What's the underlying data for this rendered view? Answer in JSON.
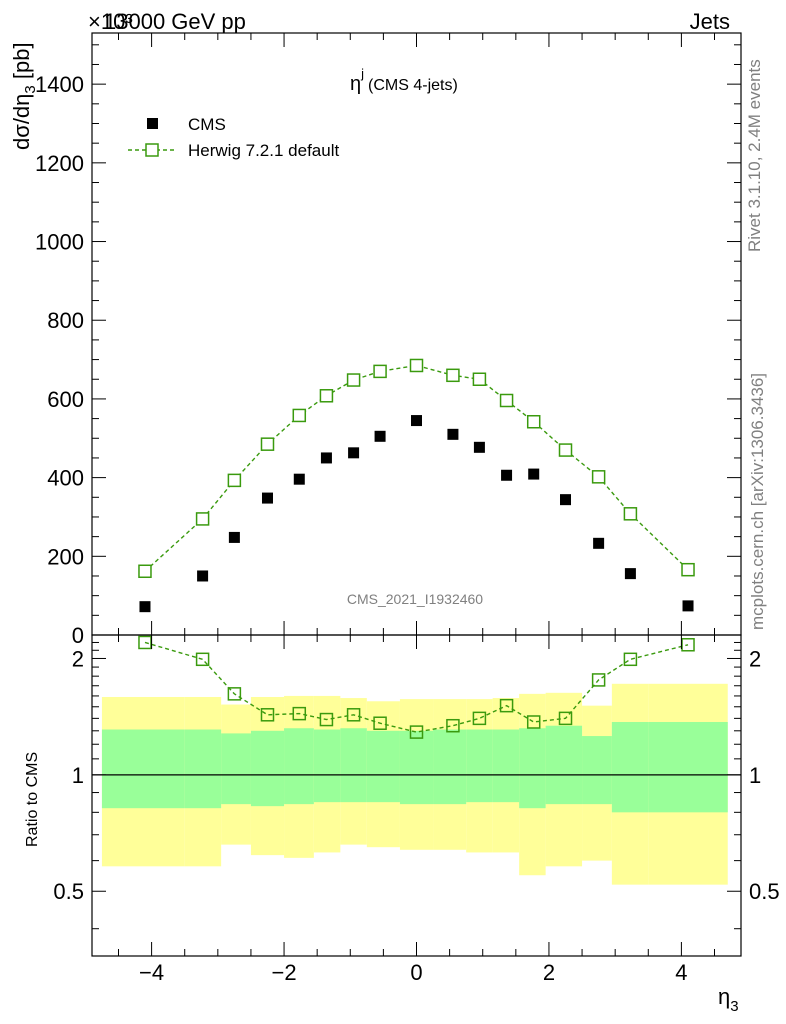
{
  "header": {
    "left": "13000 GeV pp",
    "right": "Jets",
    "exponent": "×10³"
  },
  "side_labels": {
    "rivet": "Rivet 3.1.10,  2.4M events",
    "mcplots": "mcplots.cern.ch [arXiv:1306.3436]"
  },
  "watermark": "CMS_2021_I1932460",
  "chart_data": [
    {
      "type": "scatter",
      "title": "η^j (CMS 4-jets)",
      "title_main": "η",
      "title_sup": "j",
      "title_rest": "(CMS 4-jets)",
      "ylabel": "dσ/dη₃ [pb]",
      "ylabel_main": "dσ/dη",
      "ylabel_sub": "3",
      "ylabel_unit": " [pb]",
      "xlim": [
        -4.9,
        4.9
      ],
      "ylim": [
        0,
        1530
      ],
      "y_ticks": [
        0,
        200,
        400,
        600,
        800,
        1000,
        1200,
        1400
      ],
      "y_tick_labels": [
        "0",
        "200",
        "400",
        "600",
        "800",
        "1000",
        "1200",
        "1400"
      ],
      "x": [
        -4.1,
        -3.23,
        -2.75,
        -2.25,
        -1.77,
        -1.36,
        -0.95,
        -0.55,
        0.0,
        0.55,
        0.95,
        1.36,
        1.77,
        2.25,
        2.75,
        3.23,
        4.1
      ],
      "series": [
        {
          "name": "CMS",
          "marker": "filled-square",
          "color": "#000000",
          "values": [
            72,
            150,
            248,
            348,
            396,
            450,
            463,
            505,
            545,
            510,
            477,
            406,
            409,
            344,
            233,
            156,
            74
          ]
        },
        {
          "name": "Herwig 7.2.1 default",
          "marker": "open-square-dashed",
          "color": "#3a9a0e",
          "values": [
            162,
            295,
            393,
            485,
            558,
            608,
            648,
            670,
            685,
            660,
            650,
            596,
            542,
            470,
            402,
            308,
            166
          ]
        }
      ]
    },
    {
      "type": "line",
      "ylabel": "Ratio to CMS",
      "xlabel": "η₃",
      "xlabel_main": "η",
      "xlabel_sub": "3",
      "xlim": [
        -4.9,
        4.9
      ],
      "ylim": [
        0.34,
        2.3
      ],
      "y_ticks": [
        0.5,
        1,
        2
      ],
      "y_tick_labels": [
        "0.5",
        "1",
        "2"
      ],
      "x_ticks": [
        -4,
        -2,
        0,
        2,
        4
      ],
      "x_tick_labels": [
        "−4",
        "−2",
        "0",
        "2",
        "4"
      ],
      "bins": [
        -4.75,
        -3.5,
        -2.95,
        -2.5,
        -2.0,
        -1.55,
        -1.15,
        -0.75,
        -0.25,
        0.25,
        0.75,
        1.15,
        1.55,
        1.95,
        2.5,
        2.95,
        3.5,
        4.7
      ],
      "band_green_lo": [
        0.82,
        0.82,
        0.84,
        0.83,
        0.84,
        0.85,
        0.85,
        0.85,
        0.84,
        0.84,
        0.85,
        0.85,
        0.82,
        0.84,
        0.84,
        0.8,
        0.8
      ],
      "band_green_hi": [
        1.31,
        1.31,
        1.28,
        1.3,
        1.32,
        1.31,
        1.32,
        1.3,
        1.3,
        1.31,
        1.31,
        1.31,
        1.32,
        1.34,
        1.26,
        1.37,
        1.37
      ],
      "band_yellow_lo": [
        0.58,
        0.58,
        0.66,
        0.62,
        0.61,
        0.63,
        0.66,
        0.65,
        0.64,
        0.64,
        0.63,
        0.63,
        0.55,
        0.58,
        0.6,
        0.52,
        0.52
      ],
      "band_yellow_hi": [
        1.59,
        1.59,
        1.52,
        1.59,
        1.6,
        1.6,
        1.58,
        1.55,
        1.57,
        1.57,
        1.57,
        1.58,
        1.62,
        1.63,
        1.51,
        1.72,
        1.72
      ],
      "ratio_x": [
        -4.1,
        -3.23,
        -2.75,
        -2.25,
        -1.77,
        -1.36,
        -0.95,
        -0.55,
        0.0,
        0.55,
        0.95,
        1.36,
        1.77,
        2.25,
        2.75,
        3.23,
        4.1
      ],
      "ratio_values": [
        2.2,
        1.99,
        1.62,
        1.43,
        1.44,
        1.39,
        1.43,
        1.36,
        1.29,
        1.34,
        1.4,
        1.51,
        1.37,
        1.4,
        1.76,
        1.99,
        2.17
      ]
    }
  ]
}
